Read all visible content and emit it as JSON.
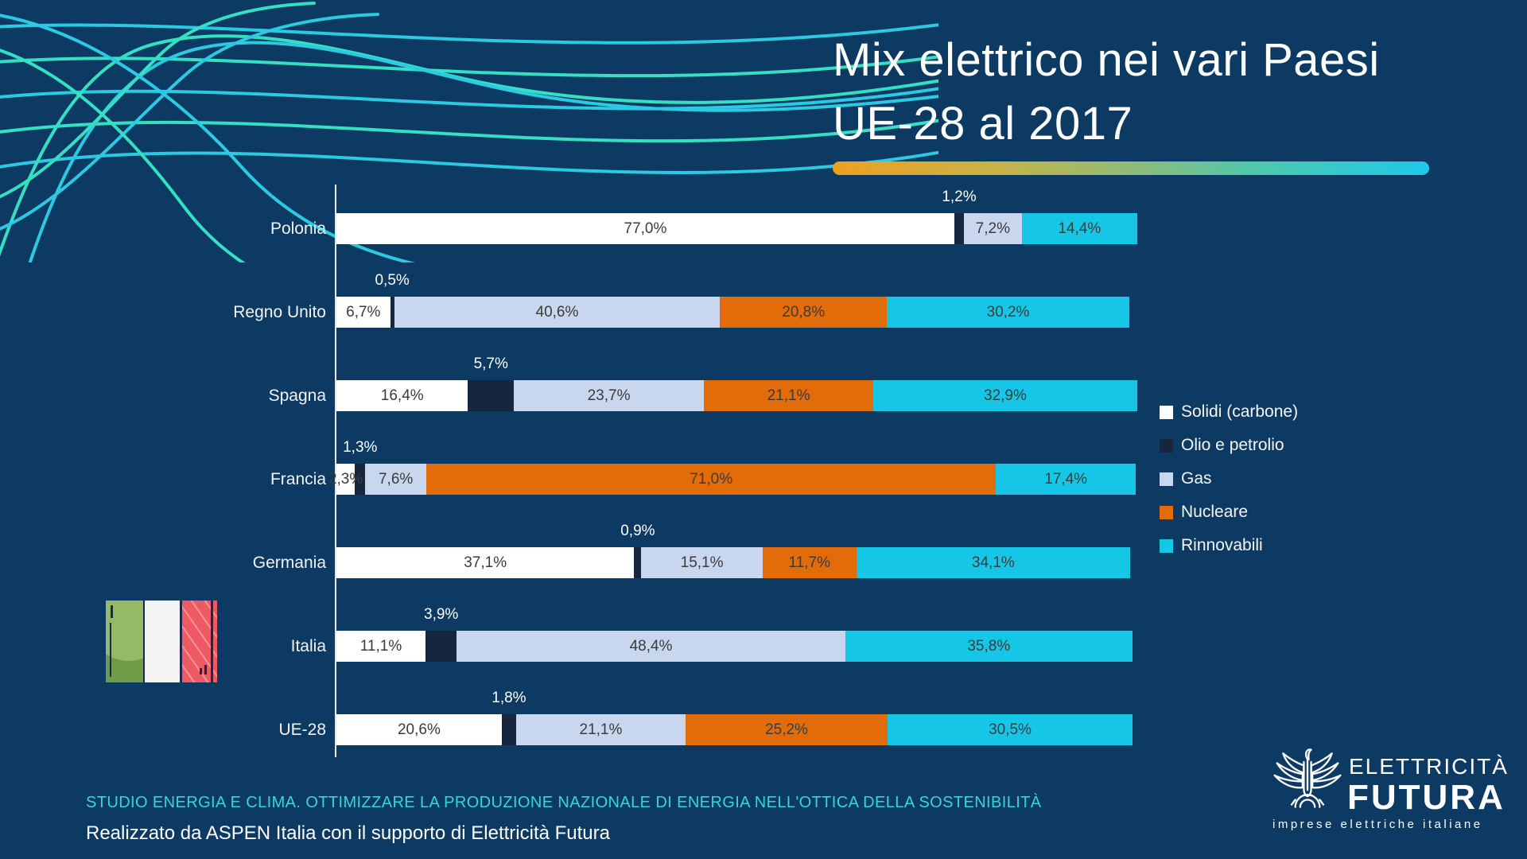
{
  "title": {
    "line1": "Mix elettrico nei vari Paesi",
    "line2": "UE-28 al 2017"
  },
  "chart_data": {
    "type": "bar",
    "orientation": "horizontal",
    "stacked": true,
    "unit": "percent",
    "xlim": [
      0,
      100
    ],
    "grid": false,
    "legend_position": "right",
    "categories": [
      "Polonia",
      "Regno Unito",
      "Spagna",
      "Francia",
      "Germania",
      "Italia",
      "UE-28"
    ],
    "series": [
      {
        "key": "solidi",
        "name": "Solidi (carbone)",
        "color": "#ffffff",
        "label_placement": "inside",
        "values": [
          77.0,
          6.7,
          16.4,
          2.3,
          37.1,
          11.1,
          20.6
        ],
        "labels": [
          "77,0%",
          "6,7%",
          "16,4%",
          "2,3%",
          "37,1%",
          "11,1%",
          "20,6%"
        ]
      },
      {
        "key": "olio",
        "name": "Olio e petrolio",
        "color": "#16263f",
        "label_placement": "above",
        "values": [
          1.2,
          0.5,
          5.7,
          1.3,
          0.9,
          3.9,
          1.8
        ],
        "labels": [
          "1,2%",
          "0,5%",
          "5,7%",
          "1,3%",
          "0,9%",
          "3,9%",
          "1,8%"
        ]
      },
      {
        "key": "gas",
        "name": "Gas",
        "color": "#c8d6ee",
        "label_placement": "inside",
        "values": [
          7.2,
          40.6,
          23.7,
          7.6,
          15.1,
          48.4,
          21.1
        ],
        "labels": [
          "7,2%",
          "40,6%",
          "23,7%",
          "7,6%",
          "15,1%",
          "48,4%",
          "21,1%"
        ]
      },
      {
        "key": "nucleare",
        "name": "Nucleare",
        "color": "#e26c09",
        "label_placement": "inside",
        "values": [
          0,
          20.8,
          21.1,
          71.0,
          11.7,
          0,
          25.2
        ],
        "labels": [
          "",
          "20,8%",
          "21,1%",
          "71,0%",
          "11,7%",
          "",
          "25,2%"
        ]
      },
      {
        "key": "rinnovabili",
        "name": "Rinnovabili",
        "color": "#15c6e6",
        "label_placement": "inside",
        "values": [
          14.4,
          30.2,
          32.9,
          17.4,
          34.1,
          35.8,
          30.5
        ],
        "labels": [
          "14,4%",
          "30,2%",
          "32,9%",
          "17,4%",
          "34,1%",
          "35,8%",
          "30,5%"
        ]
      }
    ]
  },
  "footer": {
    "study_line": "STUDIO ENERGIA E CLIMA. OTTIMIZZARE LA PRODUZIONE NAZIONALE DI ENERGIA NELL'OTTICA DELLA SOSTENIBILITÀ",
    "credit_line": "Realizzato da ASPEN Italia con il supporto di Elettricità Futura"
  },
  "logo": {
    "brand_top": "ELETTRICITÀ",
    "brand_bottom": "FUTURA",
    "tagline": "imprese elettriche italiane"
  },
  "colors": {
    "background": "#0d3a63",
    "title_text": "#ffffff",
    "underline_gradient_start": "#eea11d",
    "underline_gradient_end": "#1fc9ea",
    "value_label": "#3b3b3b",
    "above_label": "#ffffff",
    "axis_line": "#e8e8e8",
    "footer_study": "#35d6d9",
    "wave_teal": "#35dfc2",
    "wave_cyan": "#2bc9e2"
  }
}
